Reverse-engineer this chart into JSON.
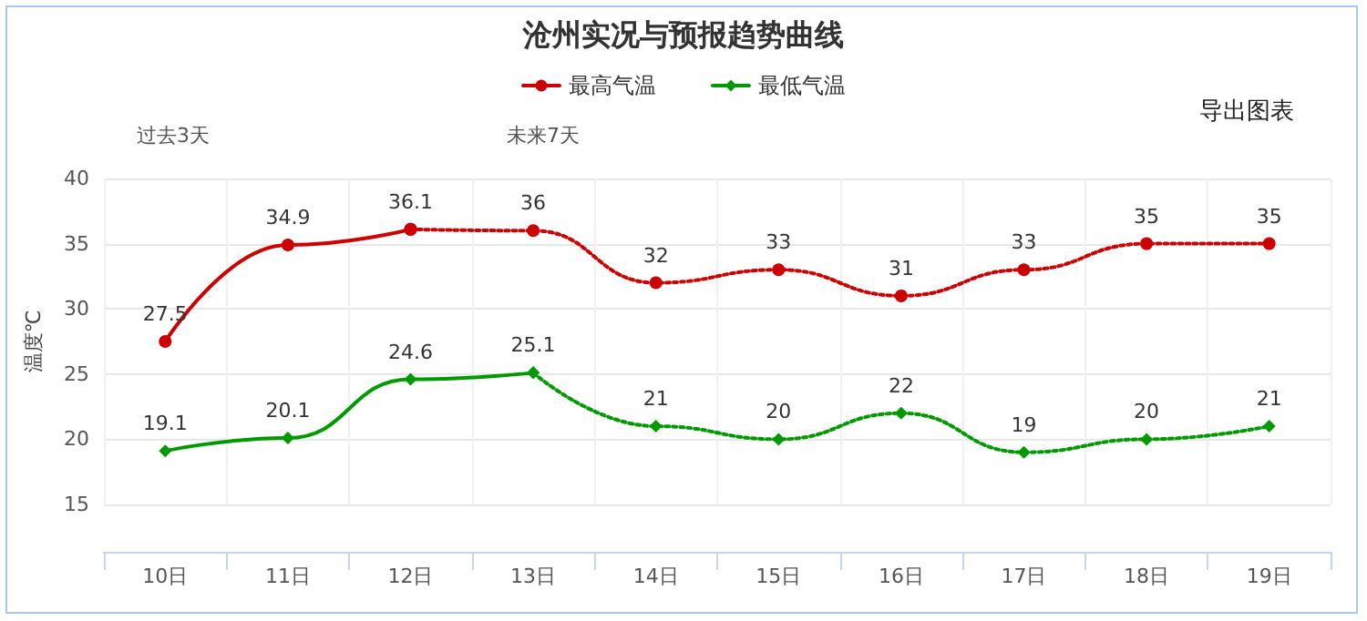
{
  "chart_data": {
    "type": "line",
    "title": "沧州实况与预报趋势曲线",
    "ylabel": "温度℃",
    "categories": [
      "10日",
      "11日",
      "12日",
      "13日",
      "14日",
      "15日",
      "16日",
      "17日",
      "18日",
      "19日"
    ],
    "series": [
      {
        "name": "最高气温",
        "color": "#cc0000",
        "marker": "circle",
        "line_style": "solid",
        "values": [
          27.5,
          34.9,
          36.1,
          null,
          null,
          null,
          null,
          null,
          null,
          null
        ],
        "value_labels": [
          "27.5",
          "34.9",
          "36.1",
          null,
          null,
          null,
          null,
          null,
          null,
          null
        ]
      },
      {
        "color": "#cc0000",
        "marker": "circle",
        "line_style": "dotted",
        "values": [
          null,
          null,
          36.1,
          36,
          32,
          33,
          31,
          33,
          35,
          35
        ],
        "value_labels": [
          null,
          null,
          null,
          "36",
          "32",
          "33",
          "31",
          "33",
          "35",
          "35"
        ]
      },
      {
        "name": "最低气温",
        "color": "#009900",
        "marker": "diamond",
        "line_style": "solid",
        "values": [
          19.1,
          20.1,
          24.6,
          25.1,
          null,
          null,
          null,
          null,
          null,
          null
        ],
        "value_labels": [
          "19.1",
          "20.1",
          "24.6",
          "25.1",
          null,
          null,
          null,
          null,
          null,
          null
        ]
      },
      {
        "color": "#009900",
        "marker": "diamond",
        "line_style": "dotted",
        "values": [
          null,
          null,
          null,
          25.1,
          21,
          20,
          22,
          19,
          20,
          21
        ],
        "value_labels": [
          null,
          null,
          null,
          null,
          "21",
          "20",
          "22",
          "19",
          "20",
          "21"
        ]
      }
    ],
    "ylim": [
      15,
      40
    ],
    "yticks": [
      15,
      20,
      25,
      30,
      35,
      40
    ],
    "grid": true,
    "legend": "top",
    "annotations": [
      "过去3天",
      "未来7天",
      "导出图表"
    ]
  }
}
